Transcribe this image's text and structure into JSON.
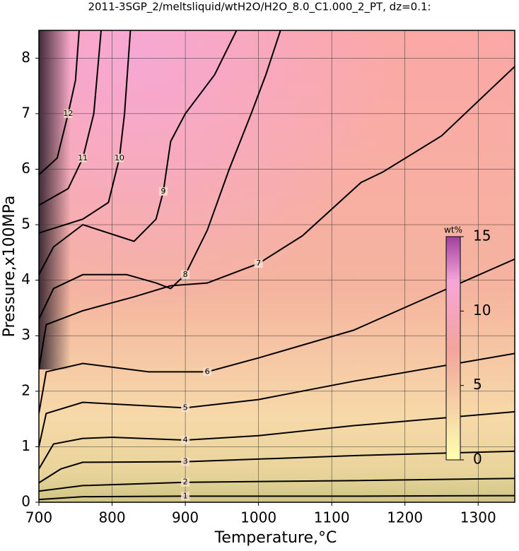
{
  "chart_data": {
    "type": "contour",
    "title": "2011-3SGP_2/meltsliquid/wtH2O/H2O_8.0_C1.000_2_PT, dz=0.1:",
    "x_label": "Temperature,°C",
    "y_label": "Pressure,x100MPa",
    "xlim": [
      700,
      1350
    ],
    "ylim": [
      0,
      8.5
    ],
    "xticks": [
      700,
      800,
      900,
      1000,
      1100,
      1200,
      1300
    ],
    "yticks": [
      0,
      1,
      2,
      3,
      4,
      5,
      6,
      7,
      8
    ],
    "grid": true,
    "contours": [
      {
        "level": 1,
        "x": [
          700,
          760,
          900,
          1130,
          1350
        ],
        "y": [
          0.05,
          0.1,
          0.11,
          0.11,
          0.12
        ]
      },
      {
        "level": 2,
        "x": [
          700,
          760,
          900,
          1130,
          1350
        ],
        "y": [
          0.2,
          0.3,
          0.36,
          0.39,
          0.43
        ]
      },
      {
        "level": 3,
        "x": [
          700,
          730,
          760,
          900,
          1130,
          1350
        ],
        "y": [
          0.35,
          0.6,
          0.72,
          0.73,
          0.84,
          0.92
        ]
      },
      {
        "level": 4,
        "x": [
          700,
          720,
          760,
          800,
          900,
          1000,
          1130,
          1350
        ],
        "y": [
          0.6,
          1.05,
          1.15,
          1.17,
          1.12,
          1.2,
          1.38,
          1.63
        ]
      },
      {
        "level": 5,
        "x": [
          700,
          710,
          760,
          830,
          900,
          1000,
          1130,
          1350
        ],
        "y": [
          1.0,
          1.6,
          1.8,
          1.75,
          1.7,
          1.85,
          2.18,
          2.68
        ]
      },
      {
        "level": 6,
        "x": [
          700,
          710,
          760,
          850,
          930,
          1000,
          1130,
          1250,
          1350
        ],
        "y": [
          1.6,
          2.35,
          2.5,
          2.35,
          2.35,
          2.6,
          3.1,
          3.8,
          4.38
        ]
      },
      {
        "level": 7,
        "x": [
          700,
          710,
          760,
          830,
          880,
          930,
          1000,
          1060,
          1140,
          1170,
          1250,
          1350
        ],
        "y": [
          2.4,
          3.2,
          3.45,
          3.7,
          3.9,
          3.95,
          4.3,
          4.8,
          5.76,
          5.95,
          6.6,
          7.85
        ]
      },
      {
        "level": 8,
        "x": [
          700,
          720,
          760,
          820,
          860,
          880,
          900,
          930,
          960,
          990,
          1010,
          1030
        ],
        "y": [
          3.3,
          3.85,
          4.1,
          4.1,
          3.95,
          3.85,
          4.1,
          4.9,
          6.0,
          7.0,
          7.7,
          8.5
        ]
      },
      {
        "level": 9,
        "x": [
          700,
          720,
          760,
          830,
          860,
          870,
          880,
          900,
          940,
          970
        ],
        "y": [
          4.1,
          4.6,
          5.0,
          4.7,
          5.1,
          5.6,
          6.5,
          7.0,
          7.7,
          8.5
        ]
      },
      {
        "level": 10,
        "x": [
          700,
          760,
          795,
          810,
          817,
          825
        ],
        "y": [
          4.85,
          5.1,
          5.4,
          6.2,
          7.0,
          8.5
        ]
      },
      {
        "level": 11,
        "x": [
          700,
          740,
          760,
          775,
          785
        ],
        "y": [
          5.35,
          5.65,
          6.2,
          7.0,
          8.5
        ]
      },
      {
        "level": 12,
        "x": [
          700,
          725,
          740,
          750,
          755
        ],
        "y": [
          5.9,
          6.2,
          7.0,
          7.6,
          8.5
        ]
      }
    ],
    "colorbar": {
      "label": "wt%",
      "lim": [
        0,
        15
      ],
      "ticks": [
        0,
        5,
        10,
        15
      ]
    }
  }
}
